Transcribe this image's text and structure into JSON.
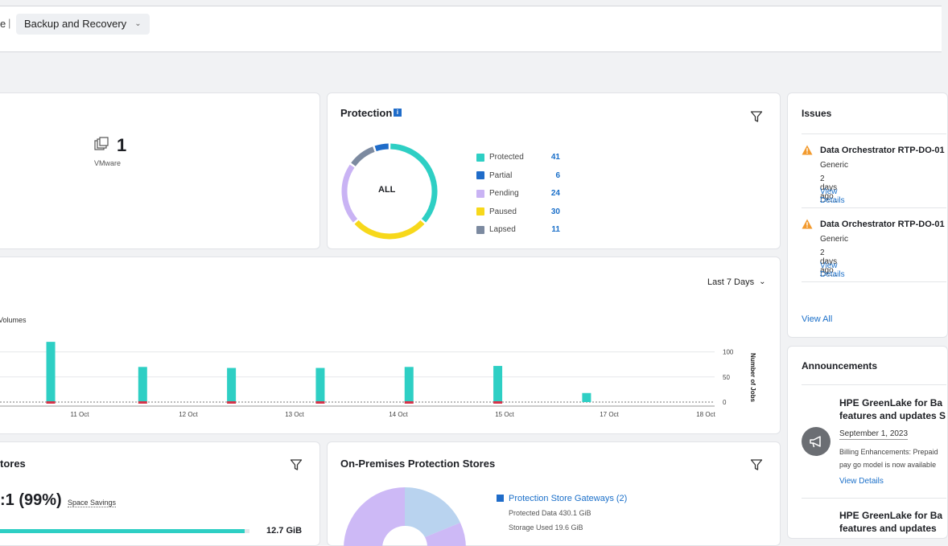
{
  "header": {
    "prev_crumb": "e",
    "separator": "|",
    "current": "Backup and Recovery"
  },
  "vm_card": {
    "count": "1",
    "label": "VMware"
  },
  "protection": {
    "title": "Protection",
    "center_label": "ALL",
    "legend": [
      {
        "label": "Protected",
        "value": "41",
        "color": "#2ecfc4"
      },
      {
        "label": "Partial",
        "value": "6",
        "color": "#1f6cc9"
      },
      {
        "label": "Pending",
        "value": "24",
        "color": "#c9b3f4"
      },
      {
        "label": "Paused",
        "value": "30",
        "color": "#f7d81b"
      },
      {
        "label": "Lapsed",
        "value": "11",
        "color": "#7c8aa0"
      }
    ]
  },
  "issues": {
    "title": "Issues",
    "items": [
      {
        "title": "Data Orchestrator RTP-DO-01",
        "sub": "Generic",
        "time": "2 days ago",
        "link": "View Details"
      },
      {
        "title": "Data Orchestrator RTP-DO-01",
        "sub": "Generic",
        "time": "2 days ago",
        "link": "View Details"
      }
    ],
    "view_all": "View All"
  },
  "jobs_chart": {
    "range_label": "Last 7 Days",
    "series_label": "Volumes",
    "right_axis_label": "Number of Jobs"
  },
  "chart_data": {
    "type": "bar",
    "categories": [
      "",
      "11 Oct",
      "",
      "12 Oct",
      "",
      "13 Oct",
      "",
      "14 Oct",
      "",
      "15 Oct",
      "",
      "17 Oct",
      "",
      "18 Oct"
    ],
    "x_ticks": [
      "11 Oct",
      "12 Oct",
      "13 Oct",
      "14 Oct",
      "15 Oct",
      "17 Oct",
      "18 Oct"
    ],
    "bars": [
      {
        "x_frac": 0.08,
        "success": 120,
        "failed": 4
      },
      {
        "x_frac": 0.225,
        "success": 70,
        "failed": 2
      },
      {
        "x_frac": 0.365,
        "success": 68,
        "failed": 2
      },
      {
        "x_frac": 0.505,
        "success": 68,
        "failed": 2
      },
      {
        "x_frac": 0.645,
        "success": 70,
        "failed": 2
      },
      {
        "x_frac": 0.785,
        "success": 72,
        "failed": 2
      },
      {
        "x_frac": 0.925,
        "success": 18,
        "failed": 0
      }
    ],
    "y_ticks": [
      100,
      50,
      0
    ],
    "ylim": [
      0,
      125
    ],
    "colors": {
      "success": "#2ecfc4",
      "failed": "#d6334a"
    },
    "ylabel": "Number of Jobs"
  },
  "announcements": {
    "title": "Announcements",
    "items": [
      {
        "title_line1": "HPE GreenLake for Ba",
        "title_line2": "features and updates S",
        "date": "September 1, 2023",
        "body_line1": "Billing Enhancements: Prepaid",
        "body_line2": "pay go model is now available",
        "link": "View Details"
      },
      {
        "title_line1": "HPE GreenLake for Ba",
        "title_line2": "features and updates"
      }
    ]
  },
  "stores": {
    "title": "tores",
    "ratio": ":1 (99%)",
    "savings_label": "Space Savings",
    "bar_value": "12.7 GiB",
    "bar_fill": 0.98
  },
  "onprem": {
    "title": "On-Premises Protection Stores",
    "legend_title": "Protection Store Gateways (2)",
    "protected": "Protected Data 430.1 GiB",
    "used": "Storage Used 19.6 GiB"
  }
}
